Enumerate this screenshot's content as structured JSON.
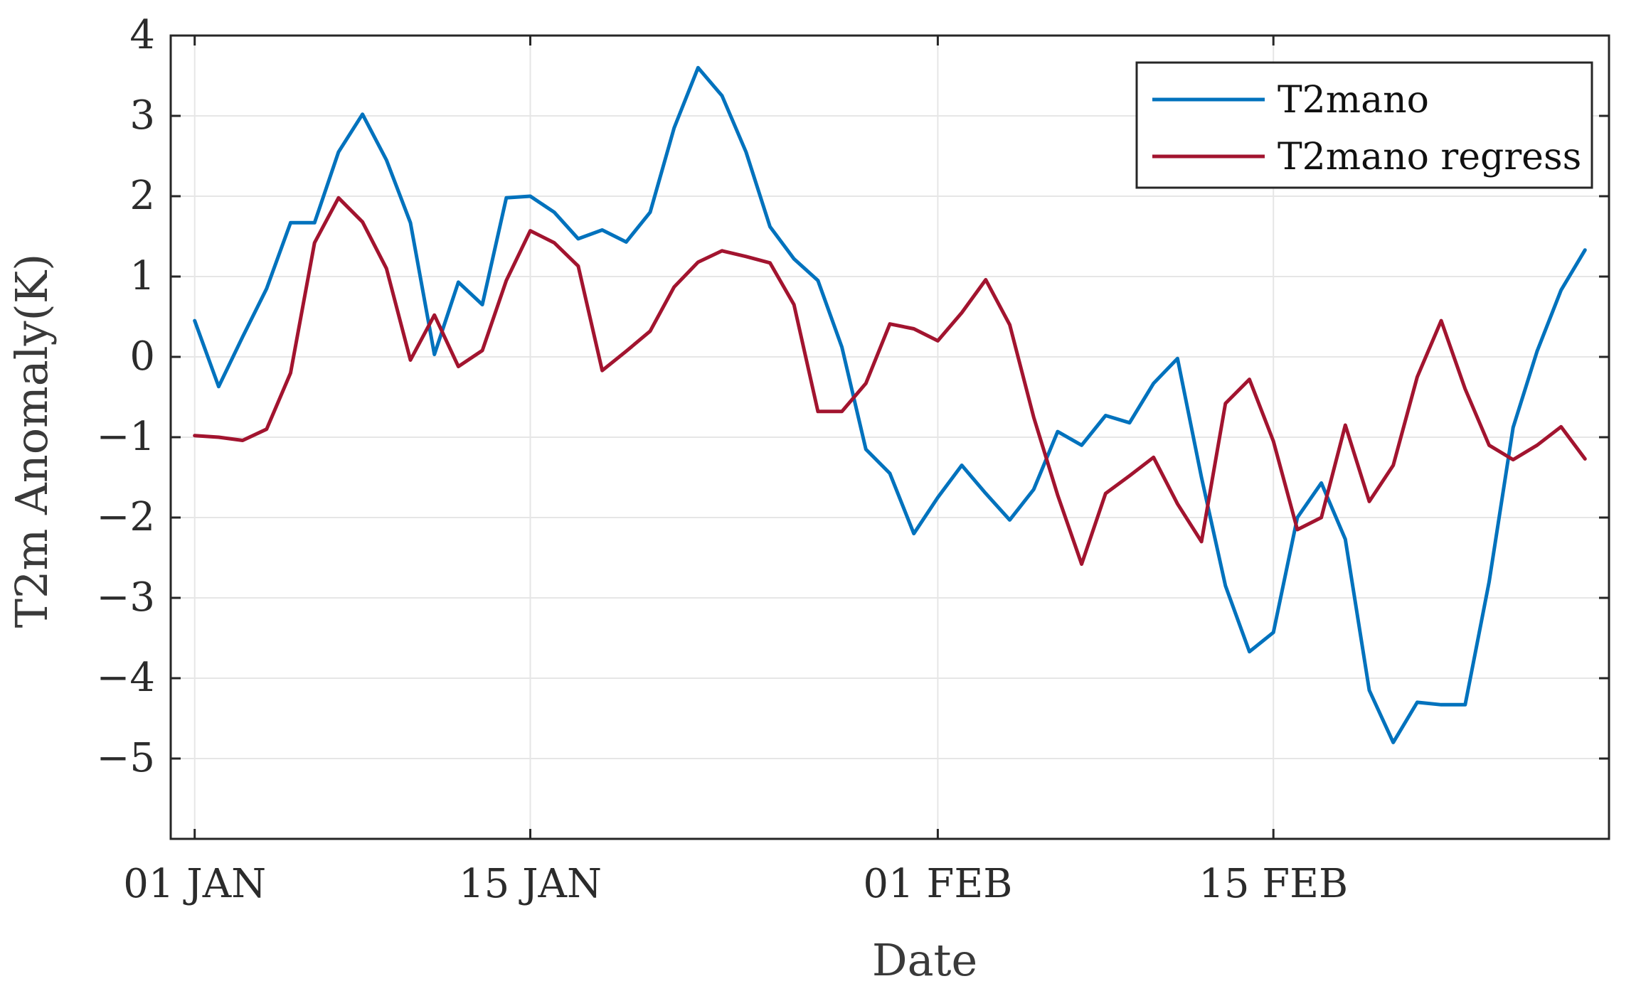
{
  "chart_data": {
    "type": "line",
    "xlabel": "Date",
    "ylabel": "T2m Anomaly(K)",
    "x_ticks": [
      {
        "day": 0,
        "label": "01 JAN"
      },
      {
        "day": 14,
        "label": "15 JAN"
      },
      {
        "day": 31,
        "label": "01 FEB"
      },
      {
        "day": 45,
        "label": "15 FEB"
      }
    ],
    "xlim": [
      -1,
      59
    ],
    "ylim": [
      -6,
      4
    ],
    "y_ticks": [
      4,
      3,
      2,
      1,
      0,
      -1,
      -2,
      -3,
      -4,
      -5
    ],
    "y_tick_labels": [
      "4",
      "3",
      "2",
      "1",
      "0",
      "−1",
      "−2",
      "−3",
      "−4",
      "−5"
    ],
    "grid": true,
    "legend_position": "top-right",
    "series": [
      {
        "name": "T2mano",
        "color": "#0072BD",
        "values": [
          0.45,
          -0.37,
          0.25,
          0.85,
          1.67,
          1.67,
          2.55,
          3.02,
          2.45,
          1.67,
          0.03,
          0.93,
          0.65,
          1.98,
          2.0,
          1.8,
          1.47,
          1.58,
          1.43,
          1.8,
          2.85,
          3.6,
          3.25,
          2.55,
          1.62,
          1.22,
          0.95,
          0.12,
          -1.15,
          -1.45,
          -2.2,
          -1.75,
          -1.35,
          -1.7,
          -2.03,
          -1.65,
          -0.93,
          -1.1,
          -0.73,
          -0.82,
          -0.33,
          -0.02,
          -1.5,
          -2.85,
          -3.67,
          -3.43,
          -2.0,
          -1.57,
          -2.27,
          -4.15,
          -4.8,
          -4.3,
          -4.33,
          -4.33,
          -2.8,
          -0.88,
          0.07,
          0.83,
          1.33
        ]
      },
      {
        "name": "T2mano regress",
        "color": "#A2142F",
        "values": [
          -0.98,
          -1.0,
          -1.04,
          -0.9,
          -0.2,
          1.42,
          1.98,
          1.68,
          1.1,
          -0.04,
          0.52,
          -0.12,
          0.08,
          0.95,
          1.57,
          1.42,
          1.13,
          -0.17,
          0.07,
          0.32,
          0.87,
          1.18,
          1.32,
          1.25,
          1.17,
          0.65,
          -0.68,
          -0.68,
          -0.33,
          0.41,
          0.35,
          0.2,
          0.55,
          0.96,
          0.4,
          -0.75,
          -1.72,
          -2.58,
          -1.7,
          -1.48,
          -1.25,
          -1.83,
          -2.3,
          -0.58,
          -0.28,
          -1.05,
          -2.15,
          -2.0,
          -0.85,
          -1.8,
          -1.35,
          -0.25,
          0.45,
          -0.4,
          -1.1,
          -1.28,
          -1.1,
          -0.87,
          -1.27
        ]
      }
    ]
  }
}
